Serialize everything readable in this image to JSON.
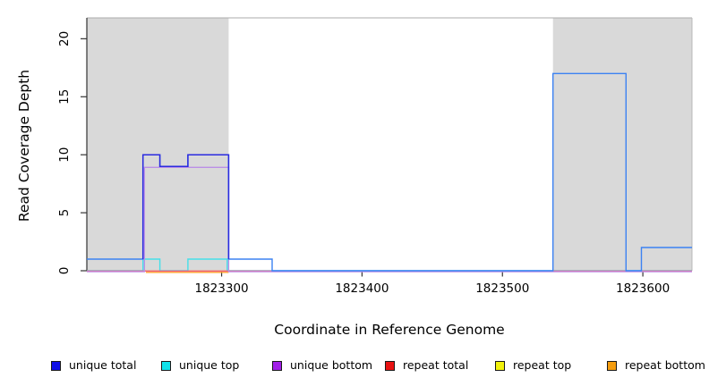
{
  "chart_data": {
    "type": "line",
    "subtype": "step-coverage",
    "title": "",
    "xlabel": "Coordinate in Reference Genome",
    "ylabel": "Read Coverage Depth",
    "xlim": [
      1823204,
      1823635
    ],
    "ylim": [
      0,
      21.8
    ],
    "xticks": [
      1823300,
      1823400,
      1823500,
      1823600
    ],
    "yticks": [
      0,
      5,
      10,
      15,
      20
    ],
    "grid": false,
    "legend_position": "bottom",
    "shade_color": "#d9d9d9",
    "frame_colors": {
      "top": "#ababab",
      "right": "#b8b8b8",
      "left": "#333333",
      "tick": "#333333"
    },
    "shaded_regions": [
      {
        "x0": 1823204,
        "x1": 1823305
      },
      {
        "x0": 1823536,
        "x1": 1823635
      }
    ],
    "series": [
      {
        "name": "repeat top",
        "color": "#f5f50a",
        "dy": 0.3,
        "points": [
          [
            1823204,
            0
          ],
          [
            1823635,
            0
          ]
        ]
      },
      {
        "name": "unique top",
        "color": "#45dfe9",
        "dy": 0,
        "points": [
          [
            1823204,
            0
          ],
          [
            1823244,
            0
          ],
          [
            1823244,
            1
          ],
          [
            1823256,
            1
          ],
          [
            1823256,
            0
          ],
          [
            1823276,
            0
          ],
          [
            1823276,
            1
          ],
          [
            1823304,
            1
          ],
          [
            1823304,
            0
          ],
          [
            1823635,
            0
          ]
        ]
      },
      {
        "name": "repeat bottom",
        "color": "#ff9e2a",
        "dy": 1.8,
        "points": [
          [
            1823246,
            0
          ],
          [
            1823305,
            0
          ]
        ]
      },
      {
        "name": "repeat total",
        "color": "#ee5f7d",
        "dy": 0.3,
        "points": [
          [
            1823204,
            0
          ],
          [
            1823635,
            0
          ]
        ]
      },
      {
        "name": "unique bottom",
        "color": "#bb8fe6",
        "dy": 1.1,
        "points": [
          [
            1823204,
            0
          ],
          [
            1823245,
            0
          ],
          [
            1823245,
            9
          ],
          [
            1823305,
            9
          ],
          [
            1823305,
            0
          ],
          [
            1823635,
            0
          ]
        ]
      },
      {
        "name": "unique total",
        "color": "#3c82f2",
        "dy": 0,
        "points": [
          [
            1823204,
            1
          ],
          [
            1823244,
            1
          ],
          [
            1823244,
            10
          ],
          [
            1823256,
            10
          ],
          [
            1823256,
            9
          ],
          [
            1823276,
            9
          ],
          [
            1823276,
            10
          ],
          [
            1823305,
            10
          ],
          [
            1823305,
            1
          ],
          [
            1823336,
            1
          ],
          [
            1823336,
            0
          ],
          [
            1823536,
            0
          ],
          [
            1823536,
            17
          ],
          [
            1823588,
            17
          ],
          [
            1823588,
            0
          ],
          [
            1823599,
            0
          ],
          [
            1823599,
            2
          ],
          [
            1823635,
            2
          ]
        ],
        "accent": {
          "color": "#2b2bdf",
          "points": [
            [
              1823244,
              1
            ],
            [
              1823244,
              10
            ],
            [
              1823256,
              10
            ],
            [
              1823256,
              9
            ],
            [
              1823276,
              9
            ],
            [
              1823276,
              10
            ],
            [
              1823305,
              10
            ],
            [
              1823305,
              1
            ]
          ]
        }
      }
    ]
  },
  "legend": {
    "items": [
      {
        "label": "unique total",
        "color": "#0f0fe8"
      },
      {
        "label": "unique top",
        "color": "#0fe2ea"
      },
      {
        "label": "unique bottom",
        "color": "#a21fe8"
      },
      {
        "label": "repeat total",
        "color": "#e81212"
      },
      {
        "label": "repeat top",
        "color": "#f2f20c"
      },
      {
        "label": "repeat bottom",
        "color": "#f59d0f"
      }
    ]
  }
}
